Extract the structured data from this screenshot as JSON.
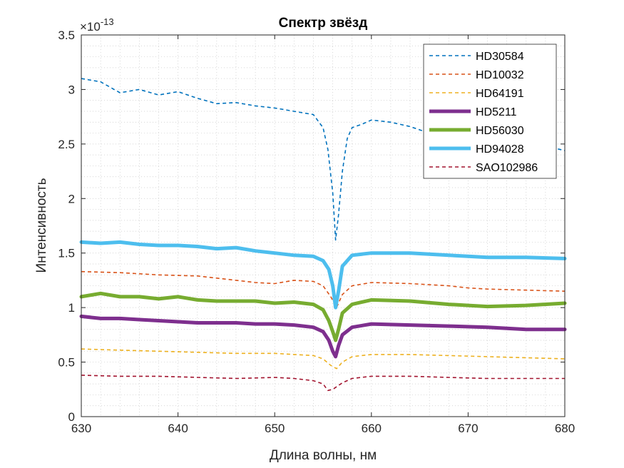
{
  "chart_data": {
    "type": "line",
    "title": "Спектр звёзд",
    "xlabel": "Длина волны, нм",
    "ylabel": "Интенсивность",
    "xlim": [
      630,
      680
    ],
    "ylim": [
      0,
      3.5
    ],
    "y_multiplier_base": "×10",
    "y_multiplier_exp": "-13",
    "xticks": [
      "630",
      "640",
      "650",
      "660",
      "670",
      "680"
    ],
    "yticks": [
      "0",
      "0.5",
      "1",
      "1.5",
      "2",
      "2.5",
      "3",
      "3.5"
    ],
    "grid": "minor-dotted",
    "legend_position": "top-right",
    "series": [
      {
        "name": "HD30584",
        "color": "#0072BD",
        "style": "dashed",
        "width": "thin",
        "x": [
          630,
          632,
          634,
          636,
          638,
          640,
          642,
          644,
          646,
          648,
          650,
          652,
          654,
          655,
          655.5,
          656,
          656.3,
          656.6,
          657,
          657.5,
          658,
          659,
          660,
          662,
          664,
          666,
          668,
          670,
          672,
          674,
          676,
          678,
          680
        ],
        "y": [
          3.1,
          3.07,
          2.97,
          3.0,
          2.95,
          2.98,
          2.92,
          2.87,
          2.88,
          2.85,
          2.83,
          2.8,
          2.77,
          2.65,
          2.45,
          2.05,
          1.62,
          1.85,
          2.25,
          2.55,
          2.65,
          2.68,
          2.72,
          2.7,
          2.66,
          2.6,
          2.56,
          2.55,
          2.52,
          2.52,
          2.5,
          2.48,
          2.44
        ]
      },
      {
        "name": "HD10032",
        "color": "#D95319",
        "style": "dashed",
        "width": "thin",
        "x": [
          630,
          634,
          638,
          642,
          646,
          648,
          650,
          652,
          654,
          655,
          655.8,
          656.4,
          657,
          658,
          660,
          664,
          668,
          670,
          672,
          676,
          680
        ],
        "y": [
          1.33,
          1.32,
          1.3,
          1.29,
          1.25,
          1.23,
          1.22,
          1.25,
          1.24,
          1.2,
          1.1,
          1.0,
          1.12,
          1.2,
          1.23,
          1.22,
          1.2,
          1.18,
          1.17,
          1.16,
          1.15
        ]
      },
      {
        "name": "HD64191",
        "color": "#EDB120",
        "style": "dashed",
        "width": "thin",
        "x": [
          630,
          634,
          638,
          642,
          646,
          650,
          652,
          654,
          655,
          655.8,
          656.4,
          657,
          658,
          660,
          664,
          668,
          672,
          676,
          680
        ],
        "y": [
          0.62,
          0.61,
          0.6,
          0.59,
          0.58,
          0.58,
          0.57,
          0.56,
          0.53,
          0.47,
          0.44,
          0.5,
          0.55,
          0.57,
          0.57,
          0.56,
          0.55,
          0.54,
          0.53
        ]
      },
      {
        "name": "HD5211",
        "color": "#7E2F8E",
        "style": "solid",
        "width": "thick",
        "x": [
          630,
          632,
          634,
          636,
          638,
          640,
          642,
          644,
          646,
          648,
          650,
          652,
          654,
          655,
          655.6,
          656,
          656.3,
          656.6,
          657,
          658,
          660,
          664,
          668,
          672,
          676,
          680
        ],
        "y": [
          0.92,
          0.9,
          0.9,
          0.89,
          0.88,
          0.87,
          0.86,
          0.86,
          0.86,
          0.85,
          0.85,
          0.84,
          0.82,
          0.78,
          0.7,
          0.6,
          0.55,
          0.65,
          0.75,
          0.82,
          0.85,
          0.84,
          0.83,
          0.82,
          0.8,
          0.8
        ]
      },
      {
        "name": "HD56030",
        "color": "#77AC30",
        "style": "solid",
        "width": "thick",
        "x": [
          630,
          632,
          634,
          636,
          638,
          640,
          642,
          644,
          646,
          648,
          650,
          652,
          654,
          655,
          655.6,
          656,
          656.3,
          656.6,
          657,
          658,
          660,
          664,
          668,
          670,
          672,
          676,
          680
        ],
        "y": [
          1.1,
          1.13,
          1.1,
          1.1,
          1.08,
          1.1,
          1.07,
          1.06,
          1.06,
          1.06,
          1.04,
          1.05,
          1.03,
          0.98,
          0.88,
          0.78,
          0.7,
          0.8,
          0.95,
          1.03,
          1.07,
          1.06,
          1.03,
          1.02,
          1.01,
          1.02,
          1.04
        ]
      },
      {
        "name": "HD94028",
        "color": "#4DBEEE",
        "style": "solid",
        "width": "thick",
        "x": [
          630,
          632,
          634,
          636,
          638,
          640,
          642,
          644,
          646,
          648,
          650,
          652,
          654,
          655,
          655.6,
          656,
          656.3,
          656.6,
          657,
          658,
          660,
          664,
          668,
          670,
          672,
          676,
          680
        ],
        "y": [
          1.6,
          1.59,
          1.6,
          1.58,
          1.57,
          1.57,
          1.56,
          1.54,
          1.55,
          1.52,
          1.5,
          1.48,
          1.47,
          1.43,
          1.35,
          1.2,
          1.0,
          1.15,
          1.38,
          1.48,
          1.5,
          1.5,
          1.48,
          1.47,
          1.46,
          1.46,
          1.45
        ]
      },
      {
        "name": "SAO102986",
        "color": "#A2142F",
        "style": "dashed",
        "width": "thin",
        "x": [
          630,
          634,
          638,
          642,
          646,
          650,
          652,
          654,
          655,
          655.5,
          656,
          656.5,
          657,
          658,
          660,
          664,
          668,
          672,
          676,
          680
        ],
        "y": [
          0.38,
          0.37,
          0.37,
          0.36,
          0.35,
          0.36,
          0.35,
          0.33,
          0.3,
          0.24,
          0.25,
          0.28,
          0.31,
          0.35,
          0.37,
          0.37,
          0.36,
          0.35,
          0.35,
          0.35
        ]
      }
    ]
  }
}
